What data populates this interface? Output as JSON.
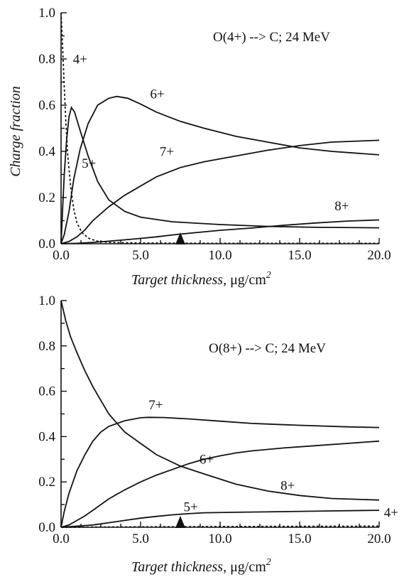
{
  "chart_data": [
    {
      "type": "line",
      "annotation": "O(4+) --> C; 24 MeV",
      "xlabel_italic": "Target thickness",
      "xlabel_unit": ", μg/cm",
      "xlabel_sup": "2",
      "ylabel": "Charge fraction",
      "xlim": [
        0,
        20
      ],
      "ylim": [
        0,
        1
      ],
      "xticks": [
        "0.0",
        "5.0",
        "10.0",
        "15.0",
        "20.0"
      ],
      "yticks": [
        "0.0",
        "0.2",
        "0.4",
        "0.6",
        "0.8",
        "1.0"
      ],
      "marker_x": 7.5,
      "series": [
        {
          "name": "4+",
          "style": "dotted",
          "points": [
            [
              0,
              1.0
            ],
            [
              0.1,
              0.85
            ],
            [
              0.2,
              0.68
            ],
            [
              0.3,
              0.53
            ],
            [
              0.4,
              0.4
            ],
            [
              0.6,
              0.25
            ],
            [
              0.8,
              0.15
            ],
            [
              1.0,
              0.09
            ],
            [
              1.3,
              0.05
            ],
            [
              1.7,
              0.025
            ],
            [
              2.2,
              0.012
            ],
            [
              3,
              0.006
            ],
            [
              5,
              0.003
            ],
            [
              10,
              0.002
            ],
            [
              20,
              0.002
            ]
          ]
        },
        {
          "name": "5+",
          "style": "solid",
          "points": [
            [
              0,
              0
            ],
            [
              0.1,
              0.15
            ],
            [
              0.2,
              0.3
            ],
            [
              0.35,
              0.45
            ],
            [
              0.5,
              0.55
            ],
            [
              0.65,
              0.59
            ],
            [
              0.85,
              0.57
            ],
            [
              1.2,
              0.49
            ],
            [
              1.7,
              0.38
            ],
            [
              2.3,
              0.27
            ],
            [
              3,
              0.19
            ],
            [
              4,
              0.14
            ],
            [
              5,
              0.115
            ],
            [
              7,
              0.095
            ],
            [
              10,
              0.083
            ],
            [
              13,
              0.075
            ],
            [
              16,
              0.071
            ],
            [
              20,
              0.069
            ]
          ]
        },
        {
          "name": "6+",
          "style": "solid",
          "points": [
            [
              0,
              0
            ],
            [
              0.2,
              0.04
            ],
            [
              0.5,
              0.14
            ],
            [
              0.8,
              0.28
            ],
            [
              1.2,
              0.41
            ],
            [
              1.7,
              0.52
            ],
            [
              2.3,
              0.6
            ],
            [
              3,
              0.63
            ],
            [
              3.5,
              0.638
            ],
            [
              4.2,
              0.63
            ],
            [
              5,
              0.605
            ],
            [
              6,
              0.57
            ],
            [
              7.5,
              0.53
            ],
            [
              9,
              0.5
            ],
            [
              11,
              0.465
            ],
            [
              13,
              0.44
            ],
            [
              15,
              0.415
            ],
            [
              17,
              0.4
            ],
            [
              20,
              0.385
            ]
          ]
        },
        {
          "name": "7+",
          "style": "solid",
          "points": [
            [
              0,
              0
            ],
            [
              0.5,
              0.01
            ],
            [
              1,
              0.03
            ],
            [
              1.5,
              0.06
            ],
            [
              2,
              0.1
            ],
            [
              3,
              0.16
            ],
            [
              4,
              0.21
            ],
            [
              5,
              0.25
            ],
            [
              6,
              0.29
            ],
            [
              7.5,
              0.33
            ],
            [
              9,
              0.355
            ],
            [
              11,
              0.38
            ],
            [
              13,
              0.405
            ],
            [
              15,
              0.425
            ],
            [
              17,
              0.44
            ],
            [
              20,
              0.448
            ]
          ]
        },
        {
          "name": "8+",
          "style": "solid",
          "points": [
            [
              0,
              0
            ],
            [
              1,
              0.002
            ],
            [
              2,
              0.006
            ],
            [
              3,
              0.011
            ],
            [
              4,
              0.017
            ],
            [
              5,
              0.023
            ],
            [
              6,
              0.03
            ],
            [
              7,
              0.038
            ],
            [
              8,
              0.045
            ],
            [
              10,
              0.058
            ],
            [
              12,
              0.068
            ],
            [
              14,
              0.08
            ],
            [
              16,
              0.09
            ],
            [
              18,
              0.098
            ],
            [
              20,
              0.103
            ]
          ]
        }
      ]
    },
    {
      "type": "line",
      "annotation": "O(8+) --> C; 24 MeV",
      "xlabel_italic": "Target thickness",
      "xlabel_unit": ", μg/cm",
      "xlabel_sup": "2",
      "ylabel": "",
      "xlim": [
        0,
        20
      ],
      "ylim": [
        0,
        1
      ],
      "xticks": [
        "0.0",
        "5.0",
        "10.0",
        "15.0",
        "20.0"
      ],
      "yticks": [
        "0.0",
        "0.2",
        "0.4",
        "0.6",
        "0.8",
        "1.0"
      ],
      "marker_x": 7.5,
      "series": [
        {
          "name": "8+",
          "style": "solid",
          "points": [
            [
              0,
              1.0
            ],
            [
              0.3,
              0.91
            ],
            [
              0.6,
              0.84
            ],
            [
              1,
              0.77
            ],
            [
              1.5,
              0.69
            ],
            [
              2,
              0.62
            ],
            [
              2.5,
              0.56
            ],
            [
              3,
              0.5
            ],
            [
              3.5,
              0.46
            ],
            [
              4,
              0.42
            ],
            [
              5,
              0.37
            ],
            [
              6,
              0.32
            ],
            [
              7.5,
              0.27
            ],
            [
              9,
              0.235
            ],
            [
              11,
              0.19
            ],
            [
              13,
              0.16
            ],
            [
              15,
              0.14
            ],
            [
              17,
              0.127
            ],
            [
              20,
              0.12
            ]
          ]
        },
        {
          "name": "7+",
          "style": "solid",
          "points": [
            [
              0,
              0
            ],
            [
              0.2,
              0.07
            ],
            [
              0.5,
              0.15
            ],
            [
              1,
              0.25
            ],
            [
              1.5,
              0.32
            ],
            [
              2,
              0.38
            ],
            [
              2.5,
              0.42
            ],
            [
              3,
              0.445
            ],
            [
              4,
              0.47
            ],
            [
              5,
              0.483
            ],
            [
              5.5,
              0.485
            ],
            [
              6.5,
              0.484
            ],
            [
              8,
              0.478
            ],
            [
              10,
              0.468
            ],
            [
              12,
              0.458
            ],
            [
              15,
              0.45
            ],
            [
              18,
              0.443
            ],
            [
              20,
              0.44
            ]
          ]
        },
        {
          "name": "6+",
          "style": "solid",
          "points": [
            [
              0,
              0
            ],
            [
              0.5,
              0.01
            ],
            [
              1,
              0.03
            ],
            [
              1.5,
              0.05
            ],
            [
              2,
              0.075
            ],
            [
              2.5,
              0.1
            ],
            [
              3,
              0.125
            ],
            [
              3.5,
              0.145
            ],
            [
              4,
              0.165
            ],
            [
              5,
              0.2
            ],
            [
              6,
              0.23
            ],
            [
              7,
              0.255
            ],
            [
              8,
              0.28
            ],
            [
              9,
              0.3
            ],
            [
              10,
              0.315
            ],
            [
              11,
              0.328
            ],
            [
              12,
              0.337
            ],
            [
              14,
              0.35
            ],
            [
              16,
              0.36
            ],
            [
              18,
              0.37
            ],
            [
              20,
              0.38
            ]
          ]
        },
        {
          "name": "5+",
          "style": "solid",
          "points": [
            [
              0,
              0
            ],
            [
              1,
              0.005
            ],
            [
              2,
              0.01
            ],
            [
              3,
              0.02
            ],
            [
              4,
              0.03
            ],
            [
              5,
              0.04
            ],
            [
              6,
              0.048
            ],
            [
              7,
              0.055
            ],
            [
              8,
              0.06
            ],
            [
              9,
              0.064
            ],
            [
              11,
              0.066
            ],
            [
              14,
              0.069
            ],
            [
              17,
              0.072
            ],
            [
              20,
              0.075
            ]
          ]
        },
        {
          "name": "4+",
          "style": "dotted",
          "points": [
            [
              0,
              0
            ],
            [
              2,
              0.001
            ],
            [
              5,
              0.002
            ],
            [
              10,
              0.003
            ],
            [
              15,
              0.004
            ],
            [
              20,
              0.005
            ]
          ]
        }
      ]
    }
  ],
  "panels": [
    {
      "series_labels": [
        "4+",
        "5+",
        "6+",
        "7+",
        "8+"
      ]
    },
    {
      "series_labels": [
        "7+",
        "6+",
        "8+",
        "5+",
        "4+"
      ]
    }
  ]
}
